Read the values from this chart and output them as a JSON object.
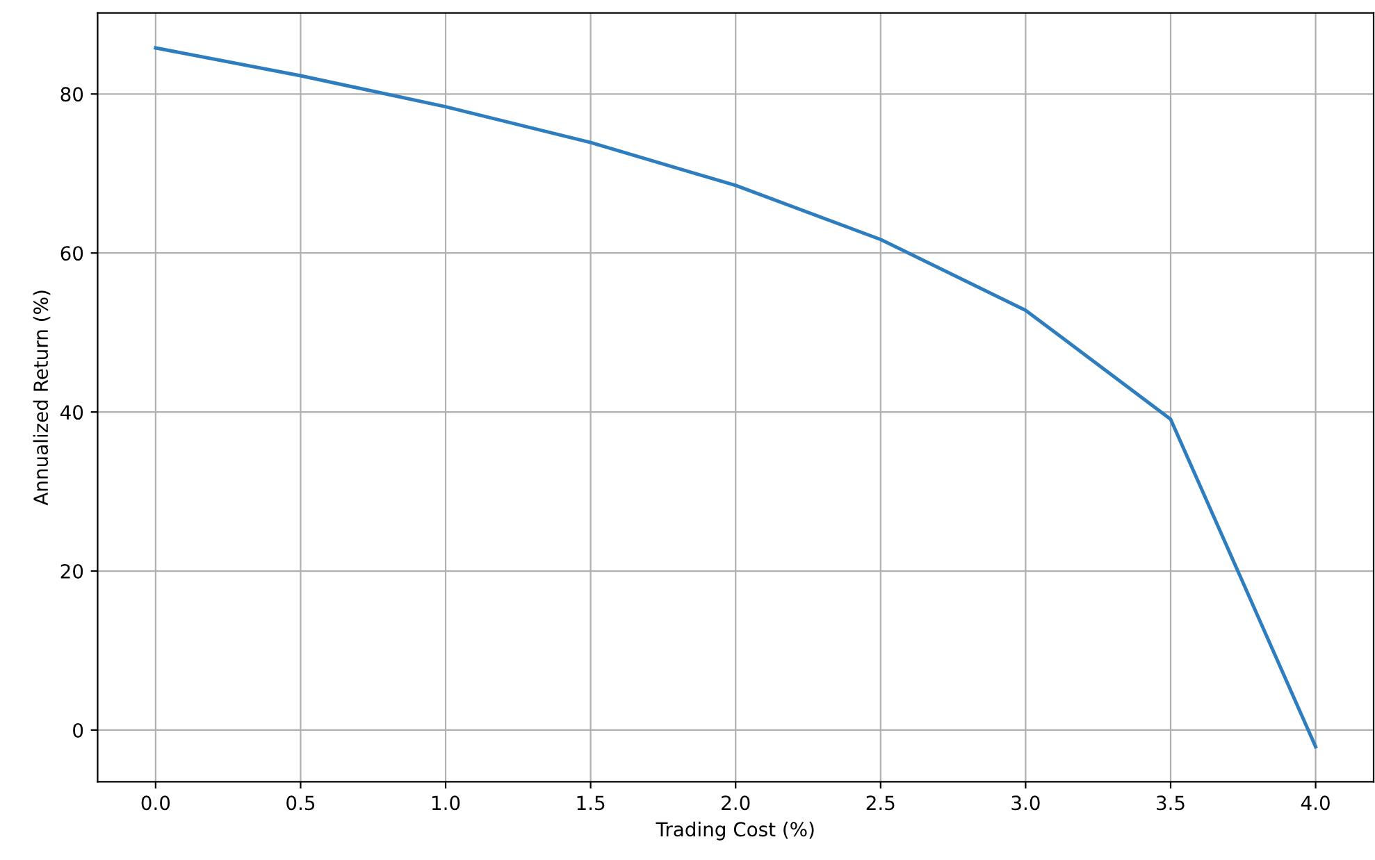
{
  "chart_data": {
    "type": "line",
    "xlabel": "Trading Cost (%)",
    "ylabel": "Annualized Return (%)",
    "x": [
      0.0,
      0.5,
      1.0,
      1.5,
      2.0,
      2.5,
      3.0,
      3.5,
      4.0
    ],
    "series": [
      {
        "color": "#2e7ebf",
        "values": [
          85.8,
          82.3,
          78.4,
          73.9,
          68.5,
          61.7,
          52.8,
          39.1,
          -2.1
        ]
      }
    ],
    "xlim": [
      -0.2,
      4.2
    ],
    "ylim": [
      -6.5,
      90.2
    ],
    "xticks": [
      {
        "value": 0.0,
        "label": "0.0"
      },
      {
        "value": 0.5,
        "label": "0.5"
      },
      {
        "value": 1.0,
        "label": "1.0"
      },
      {
        "value": 1.5,
        "label": "1.5"
      },
      {
        "value": 2.0,
        "label": "2.0"
      },
      {
        "value": 2.5,
        "label": "2.5"
      },
      {
        "value": 3.0,
        "label": "3.0"
      },
      {
        "value": 3.5,
        "label": "3.5"
      },
      {
        "value": 4.0,
        "label": "4.0"
      }
    ],
    "yticks": [
      0,
      20,
      40,
      60,
      80
    ],
    "grid": true,
    "marker": "none",
    "line_style": "solid"
  }
}
